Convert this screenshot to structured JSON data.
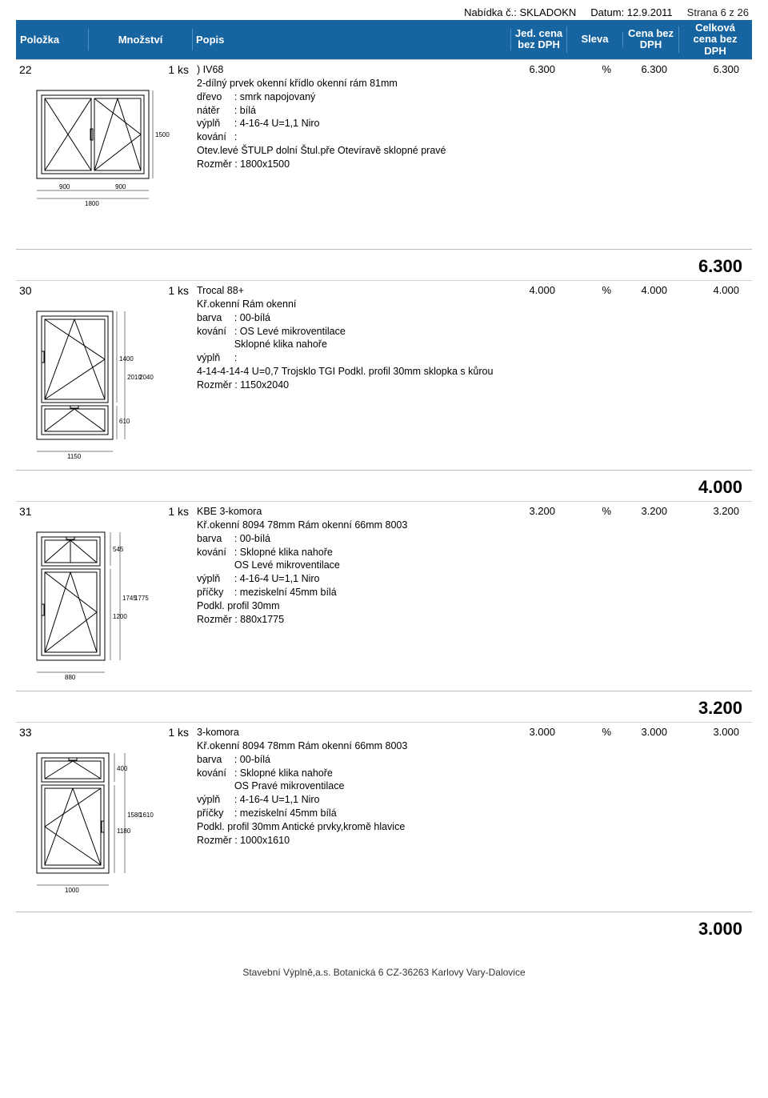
{
  "meta": {
    "offer": "Nabídka č.: SKLADOKN",
    "date": "Datum: 12.9.2011",
    "page": "Strana 6 z 26"
  },
  "header": {
    "polozka": "Položka",
    "mnozstvi": "Množství",
    "popis": "Popis",
    "jed": "Jed. cena bez DPH",
    "sleva": "Sleva",
    "cena": "Cena bez DPH",
    "celk": "Celková cena bez DPH"
  },
  "footer": "Stavební Výplně,a.s.  Botanická 6 CZ-36263 Karlovy Vary-Dalovice",
  "colors": {
    "header_bg": "#1664a0",
    "header_text": "#ffffff",
    "border": "#d0d0d0"
  },
  "items": [
    {
      "poz": "22",
      "qty": "1  ks",
      "title": ") IV68",
      "desc_lines": [
        "2-dílný prvek okenní křídlo okenní rám          81mm"
      ],
      "kv": [
        {
          "k": "dřevo",
          "v": ": smrk napojovaný"
        },
        {
          "k": "nátěr",
          "v": ": bílá"
        },
        {
          "k": "výplň",
          "v": ": 4-16-4 U=1,1 Niro"
        },
        {
          "k": "kování",
          "v": ":"
        }
      ],
      "tail": [
        "Otev.levé ŠTULP dolní Štul.pře Otevíravě sklopné pravé",
        "Rozměr            : 1800x1500"
      ],
      "jed": "6.300",
      "sleva": "%",
      "cena": "6.300",
      "celk": "6.300",
      "subtotal": "6.300",
      "svg": "svg22"
    },
    {
      "poz": "30",
      "qty": "1  ks",
      "title": "Trocal 88+",
      "desc_lines": [
        "Kř.okenní Rám okenní"
      ],
      "kv": [
        {
          "k": "barva",
          "v": ": 00-bílá"
        },
        {
          "k": "kování",
          "v": ": OS Levé mikroventilace"
        },
        {
          "k": "",
          "v": "  Sklopné klika nahoře"
        },
        {
          "k": "výplň",
          "v": ":"
        }
      ],
      "tail": [
        "4-14-4-14-4 U=0,7 Trojsklo TGI Podkl. profil 30mm sklopka s kůrou",
        "Rozměr            : 1150x2040"
      ],
      "jed": "4.000",
      "sleva": "%",
      "cena": "4.000",
      "celk": "4.000",
      "subtotal": "4.000",
      "svg": "svg30"
    },
    {
      "poz": "31",
      "qty": "1  ks",
      "title": "KBE 3-komora",
      "desc_lines": [
        "Kř.okenní 8094 78mm Rám okenní 66mm 8003"
      ],
      "kv": [
        {
          "k": "barva",
          "v": ": 00-bílá"
        },
        {
          "k": "kování",
          "v": ": Sklopné klika nahoře"
        },
        {
          "k": "",
          "v": "  OS Levé mikroventilace"
        },
        {
          "k": "výplň",
          "v": ": 4-16-4 U=1,1 Niro"
        },
        {
          "k": "příčky",
          "v": ": meziskelní 45mm bílá"
        }
      ],
      "tail": [
        "Podkl. profil 30mm",
        "Rozměr            : 880x1775"
      ],
      "jed": "3.200",
      "sleva": "%",
      "cena": "3.200",
      "celk": "3.200",
      "subtotal": "3.200",
      "svg": "svg31"
    },
    {
      "poz": "33",
      "qty": "1  ks",
      "title": "3-komora",
      "desc_lines": [
        "Kř.okenní 8094 78mm Rám okenní 66mm 8003"
      ],
      "kv": [
        {
          "k": "barva",
          "v": ": 00-bílá"
        },
        {
          "k": "kování",
          "v": ": Sklopné klika nahoře"
        },
        {
          "k": "",
          "v": "  OS Pravé mikroventilace"
        },
        {
          "k": "výplň",
          "v": ": 4-16-4 U=1,1 Niro"
        },
        {
          "k": "příčky",
          "v": ": meziskelní 45mm bílá"
        }
      ],
      "tail": [
        "Podkl. profil 30mm Antické prvky,kromě hlavice",
        "Rozměr            : 1000x1610"
      ],
      "jed": "3.000",
      "sleva": "%",
      "cena": "3.000",
      "celk": "3.000",
      "subtotal": "3.000",
      "svg": "svg33"
    }
  ]
}
